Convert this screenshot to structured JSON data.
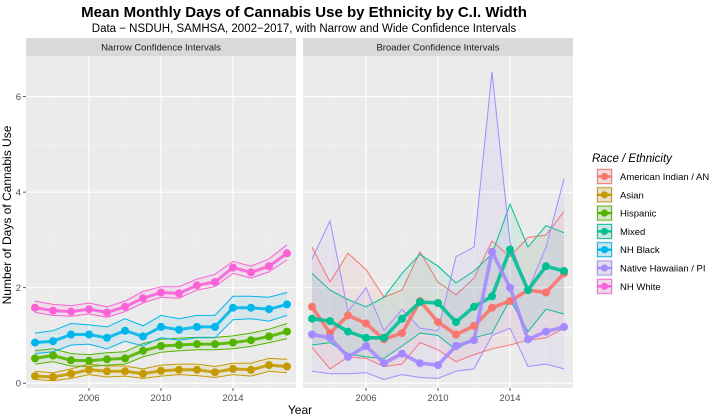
{
  "chart_data": {
    "type": "line",
    "title": "Mean Monthly Days of Cannabis Use by Ethnicity by C.I. Width",
    "subtitle": "Data − NSDUH, SAMHSA, 2002−2017, with Narrow and Wide Confidence Intervals",
    "xlabel": "Year",
    "ylabel": "Number of Days of Cannabis Use",
    "xlim": [
      2002.5,
      2017.5
    ],
    "ylim": [
      -0.1,
      6.85
    ],
    "x_ticks": [
      2006,
      2010,
      2014
    ],
    "y_ticks": [
      0,
      2,
      4,
      6
    ],
    "legend_title": "Race / Ethnicity",
    "legend_position": "right",
    "x": [
      2003,
      2004,
      2005,
      2006,
      2007,
      2008,
      2009,
      2010,
      2011,
      2012,
      2013,
      2014,
      2015,
      2016,
      2017
    ],
    "panels": [
      {
        "label": "Narrow Confidence Intervals",
        "band": "narrow",
        "series": [
          {
            "name": "American Indian / AN",
            "color": "#F8766D",
            "values": [],
            "lower": [],
            "upper": []
          },
          {
            "name": "Asian",
            "color": "#C49A00",
            "values": [
              0.15,
              0.13,
              0.2,
              0.28,
              0.25,
              0.25,
              0.2,
              0.26,
              0.28,
              0.28,
              0.23,
              0.3,
              0.28,
              0.38,
              0.35
            ],
            "lower": [
              0.08,
              0.05,
              0.1,
              0.18,
              0.13,
              0.15,
              0.1,
              0.15,
              0.18,
              0.16,
              0.12,
              0.18,
              0.15,
              0.25,
              0.22
            ],
            "upper": [
              0.25,
              0.22,
              0.3,
              0.4,
              0.36,
              0.36,
              0.3,
              0.38,
              0.4,
              0.4,
              0.35,
              0.42,
              0.42,
              0.52,
              0.5
            ]
          },
          {
            "name": "Hispanic",
            "color": "#53B400",
            "values": [
              0.52,
              0.58,
              0.48,
              0.47,
              0.5,
              0.52,
              0.68,
              0.78,
              0.8,
              0.82,
              0.82,
              0.85,
              0.9,
              0.98,
              1.08
            ],
            "lower": [
              0.4,
              0.45,
              0.36,
              0.35,
              0.38,
              0.4,
              0.55,
              0.65,
              0.68,
              0.7,
              0.7,
              0.72,
              0.77,
              0.85,
              0.93
            ],
            "upper": [
              0.68,
              0.72,
              0.62,
              0.6,
              0.64,
              0.66,
              0.83,
              0.92,
              0.94,
              0.96,
              0.96,
              0.99,
              1.05,
              1.13,
              1.25
            ]
          },
          {
            "name": "Mixed",
            "color": "#00C094",
            "values": [],
            "lower": [],
            "upper": []
          },
          {
            "name": "NH Black",
            "color": "#00B6EB",
            "values": [
              0.85,
              0.88,
              1.02,
              1.02,
              0.95,
              1.1,
              0.98,
              1.18,
              1.12,
              1.18,
              1.18,
              1.58,
              1.58,
              1.55,
              1.65
            ],
            "lower": [
              0.62,
              0.66,
              0.8,
              0.82,
              0.72,
              0.88,
              0.78,
              0.95,
              0.9,
              0.95,
              0.95,
              1.33,
              1.35,
              1.3,
              1.42
            ],
            "upper": [
              1.05,
              1.1,
              1.25,
              1.22,
              1.18,
              1.35,
              1.2,
              1.42,
              1.35,
              1.42,
              1.42,
              1.82,
              1.82,
              1.8,
              1.9
            ]
          },
          {
            "name": "Native Hawaiian / PI",
            "color": "#A58AFF",
            "values": [],
            "lower": [],
            "upper": []
          },
          {
            "name": "NH White",
            "color": "#FB61D7",
            "values": [
              1.58,
              1.52,
              1.5,
              1.55,
              1.48,
              1.6,
              1.78,
              1.9,
              1.88,
              2.05,
              2.12,
              2.42,
              2.32,
              2.45,
              2.72
            ],
            "lower": [
              1.48,
              1.42,
              1.4,
              1.45,
              1.38,
              1.5,
              1.68,
              1.8,
              1.78,
              1.95,
              2.02,
              2.3,
              2.2,
              2.33,
              2.58
            ],
            "upper": [
              1.72,
              1.65,
              1.62,
              1.68,
              1.6,
              1.72,
              1.92,
              2.02,
              2.02,
              2.18,
              2.28,
              2.55,
              2.45,
              2.6,
              2.9
            ]
          }
        ]
      },
      {
        "label": "Broader Confidence Intervals",
        "band": "wide",
        "series": [
          {
            "name": "American Indian / AN",
            "color": "#F8766D",
            "values": [
              1.6,
              1.05,
              1.42,
              1.25,
              0.92,
              1.05,
              1.72,
              1.28,
              1.02,
              1.2,
              1.58,
              1.72,
              1.95,
              1.9,
              2.3
            ],
            "lower": [
              0.75,
              0.3,
              0.55,
              0.52,
              0.35,
              0.4,
              0.85,
              0.7,
              0.45,
              0.6,
              0.72,
              0.8,
              0.9,
              0.95,
              1.15
            ],
            "upper": [
              2.85,
              2.12,
              2.72,
              2.38,
              1.8,
              1.95,
              2.75,
              2.12,
              1.85,
              2.2,
              2.98,
              2.65,
              3.05,
              3.1,
              3.6
            ]
          },
          {
            "name": "Asian",
            "color": "#C49A00",
            "values": [],
            "lower": [],
            "upper": []
          },
          {
            "name": "Hispanic",
            "color": "#53B400",
            "values": [],
            "lower": [],
            "upper": []
          },
          {
            "name": "Mixed",
            "color": "#00C094",
            "values": [
              1.35,
              1.3,
              1.08,
              0.95,
              0.95,
              1.35,
              1.7,
              1.68,
              1.28,
              1.6,
              1.82,
              2.8,
              1.95,
              2.45,
              2.35
            ],
            "lower": [
              0.8,
              0.85,
              0.62,
              0.55,
              0.52,
              0.78,
              1.05,
              1.0,
              0.7,
              0.95,
              1.05,
              1.75,
              1.08,
              1.55,
              1.45
            ],
            "upper": [
              2.3,
              1.95,
              1.75,
              1.6,
              1.8,
              2.3,
              2.7,
              2.45,
              2.1,
              2.35,
              2.7,
              3.75,
              2.85,
              3.3,
              3.15
            ]
          },
          {
            "name": "NH Black",
            "color": "#00B6EB",
            "values": [],
            "lower": [],
            "upper": []
          },
          {
            "name": "Native Hawaiian / PI",
            "color": "#A58AFF",
            "values": [
              1.02,
              0.95,
              0.55,
              0.78,
              0.42,
              0.62,
              0.42,
              0.38,
              0.78,
              0.9,
              2.75,
              2.0,
              0.92,
              1.08,
              1.18
            ],
            "lower": [
              0.25,
              0.2,
              0.2,
              0.22,
              0.08,
              0.18,
              0.12,
              0.1,
              0.25,
              0.3,
              1.0,
              1.15,
              0.35,
              0.4,
              0.3
            ],
            "upper": [
              2.6,
              3.4,
              1.5,
              2.0,
              1.1,
              1.55,
              1.15,
              1.1,
              2.65,
              2.85,
              6.52,
              2.95,
              1.95,
              2.85,
              4.28
            ]
          },
          {
            "name": "NH White",
            "color": "#FB61D7",
            "values": [],
            "lower": [],
            "upper": []
          }
        ]
      }
    ]
  }
}
